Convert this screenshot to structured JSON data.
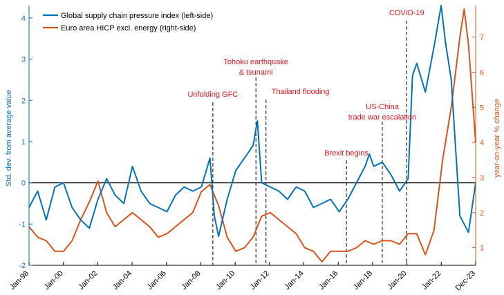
{
  "chart_data": {
    "type": "line",
    "legend_position": "top-left",
    "grid": false,
    "colors": {
      "gscpi": "#0072BD",
      "hicp": "#D95319",
      "annotation": "#E8141C",
      "axis": "#000000"
    },
    "ylabel_left": "Std. dev. from average value",
    "ylabel_right": "year-on-year % change",
    "ylim_left": [
      -2,
      4.3
    ],
    "ylim_right": [
      0.5,
      7.9
    ],
    "yticks_left": [
      "-2",
      "-1",
      "0",
      "1",
      "2",
      "3",
      "4"
    ],
    "yticks_right": [
      "1",
      "2",
      "3",
      "4",
      "5",
      "6",
      "7"
    ],
    "xlim": [
      "1998-01",
      "2023-12"
    ],
    "xticks": [
      "Jan-98",
      "Jan-00",
      "Jan-02",
      "Jan-04",
      "Jan-06",
      "Jan-08",
      "Jan-10",
      "Jan-12",
      "Jan-14",
      "Jan-16",
      "Jan-18",
      "Jan-20",
      "Jan-22",
      "Dec-23"
    ],
    "zero_line_left": 0,
    "series": [
      {
        "name": "Global supply chain pressure index (left-side)",
        "axis": "left",
        "x": [
          "1998-01",
          "1998-07",
          "1999-01",
          "1999-07",
          "2000-01",
          "2000-07",
          "2001-01",
          "2001-07",
          "2002-01",
          "2002-07",
          "2003-01",
          "2003-07",
          "2004-01",
          "2004-07",
          "2005-01",
          "2005-07",
          "2006-01",
          "2006-07",
          "2007-01",
          "2007-07",
          "2008-01",
          "2008-07",
          "2008-10",
          "2009-01",
          "2009-07",
          "2010-01",
          "2010-07",
          "2011-01",
          "2011-04",
          "2011-07",
          "2012-01",
          "2012-07",
          "2013-01",
          "2013-07",
          "2014-01",
          "2014-07",
          "2015-01",
          "2015-07",
          "2016-01",
          "2016-07",
          "2017-01",
          "2017-07",
          "2017-10",
          "2018-01",
          "2018-07",
          "2019-01",
          "2019-07",
          "2020-01",
          "2020-04",
          "2020-07",
          "2021-01",
          "2021-07",
          "2021-12",
          "2022-03",
          "2022-07",
          "2023-01",
          "2023-07",
          "2023-12"
        ],
        "y": [
          -0.6,
          -0.2,
          -0.9,
          -0.1,
          0.0,
          -0.6,
          -0.9,
          -1.1,
          -0.4,
          0.1,
          -0.3,
          -0.5,
          0.4,
          -0.2,
          -0.5,
          -0.6,
          -0.7,
          -0.3,
          -0.1,
          -0.2,
          -0.1,
          0.6,
          -0.8,
          -1.3,
          -0.4,
          0.3,
          0.6,
          0.9,
          1.5,
          0.0,
          -0.1,
          -0.2,
          -0.4,
          -0.1,
          -0.2,
          -0.6,
          -0.5,
          -0.4,
          -0.7,
          -0.4,
          0.0,
          0.4,
          0.7,
          0.4,
          0.5,
          0.2,
          -0.2,
          0.1,
          2.6,
          2.9,
          2.2,
          3.3,
          4.3,
          3.4,
          2.5,
          -0.8,
          -1.2,
          0.0
        ]
      },
      {
        "name": "Euro area HICP excl. energy (right-side)",
        "axis": "right",
        "x": [
          "1998-01",
          "1998-07",
          "1999-01",
          "1999-07",
          "2000-01",
          "2000-07",
          "2001-01",
          "2001-07",
          "2002-01",
          "2002-07",
          "2003-01",
          "2003-07",
          "2004-01",
          "2004-07",
          "2005-01",
          "2005-07",
          "2006-01",
          "2006-07",
          "2007-01",
          "2007-07",
          "2008-01",
          "2008-07",
          "2009-01",
          "2009-07",
          "2010-01",
          "2010-07",
          "2011-01",
          "2011-07",
          "2012-01",
          "2012-07",
          "2013-01",
          "2013-07",
          "2014-01",
          "2014-07",
          "2015-01",
          "2015-07",
          "2016-01",
          "2016-07",
          "2017-01",
          "2017-07",
          "2018-01",
          "2018-07",
          "2019-01",
          "2019-07",
          "2020-01",
          "2020-07",
          "2021-01",
          "2021-07",
          "2022-01",
          "2022-07",
          "2023-01",
          "2023-04",
          "2023-07",
          "2023-12"
        ],
        "y": [
          1.6,
          1.3,
          1.2,
          0.9,
          0.9,
          1.2,
          1.8,
          2.3,
          2.9,
          2.0,
          1.6,
          1.8,
          2.0,
          1.8,
          1.6,
          1.3,
          1.4,
          1.6,
          1.8,
          2.0,
          2.6,
          2.8,
          2.2,
          1.3,
          0.9,
          1.0,
          1.3,
          1.9,
          2.0,
          1.8,
          1.6,
          1.4,
          1.0,
          0.9,
          0.6,
          0.9,
          0.9,
          0.9,
          1.0,
          1.2,
          1.1,
          1.2,
          1.2,
          1.1,
          1.4,
          1.4,
          0.8,
          1.5,
          3.5,
          5.0,
          7.0,
          7.8,
          6.8,
          4.0
        ]
      }
    ],
    "annotations": [
      {
        "text": [
          "Unfolding GFC"
        ],
        "x": "2008-09"
      },
      {
        "text": [
          "Tohoku earthquake",
          "& tsunami"
        ],
        "x": "2011-03"
      },
      {
        "text": [
          "Thailand flooding"
        ],
        "x": "2011-10"
      },
      {
        "text": [
          "Brexit begins"
        ],
        "x": "2016-06"
      },
      {
        "text": [
          "US-China",
          "trade war escalation"
        ],
        "x": "2018-07"
      },
      {
        "text": [
          "COVID-19"
        ],
        "x": "2019-12"
      }
    ]
  }
}
